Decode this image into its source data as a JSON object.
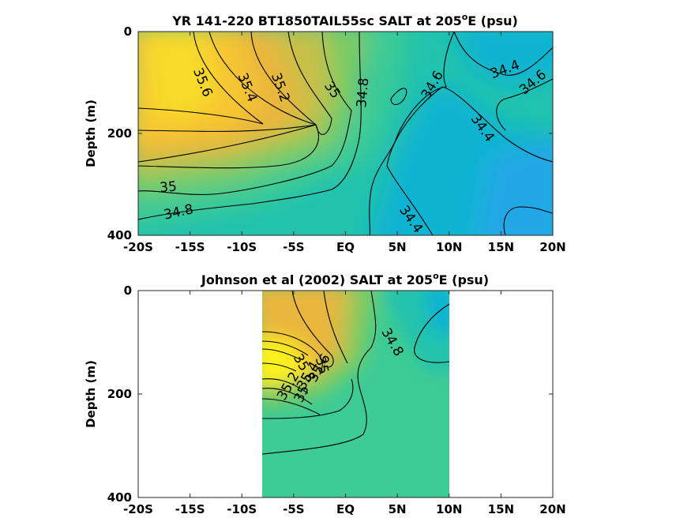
{
  "colors": {
    "s_low": "#22a7e6",
    "s_34_4": "#10b4d2",
    "s_34_6": "#22c2ae",
    "s_34_8": "#3ecb94",
    "s_35": "#7ecb62",
    "s_35_2": "#c6c04a",
    "s_35_4": "#e9b63e",
    "s_35_6": "#f6c532",
    "s_high": "#f8da2a",
    "s_max": "#f9f21c",
    "contour": "#000000"
  },
  "chart_data": [
    {
      "type": "heatmap",
      "title_main": "YR 141-220 BT1850TAIL55sc SALT at 205",
      "title_sup": "o",
      "title_tail": "E (psu)",
      "ylabel": "Depth (m)",
      "xlim": [
        -20,
        20
      ],
      "ylim": [
        400,
        0
      ],
      "x_ticks": [
        -20,
        -15,
        -10,
        -5,
        0,
        5,
        10,
        15,
        20
      ],
      "x_tick_labels": [
        "-20S",
        "-15S",
        "-10S",
        "-5S",
        "EQ",
        "5N",
        "10N",
        "15N",
        "20N"
      ],
      "y_ticks": [
        0,
        200,
        400
      ],
      "y_tick_labels": [
        "0",
        "200",
        "400"
      ],
      "data_extent_x": [
        -20,
        20
      ],
      "contour_levels": [
        34.4,
        34.6,
        34.8,
        35,
        35.2,
        35.4,
        35.6
      ],
      "contour_labels": [
        {
          "text": "35.6",
          "x": -13.8,
          "y": 100,
          "rot": 68
        },
        {
          "text": "35.4",
          "x": -9.5,
          "y": 110,
          "rot": 68
        },
        {
          "text": "35.2",
          "x": -6.3,
          "y": 110,
          "rot": 70
        },
        {
          "text": "35",
          "x": -1.3,
          "y": 115,
          "rot": 55
        },
        {
          "text": "34.8",
          "x": 1.7,
          "y": 120,
          "rot": -85
        },
        {
          "text": "34.6",
          "x": 8.4,
          "y": 105,
          "rot": -60
        },
        {
          "text": "34.4",
          "x": 13.2,
          "y": 190,
          "rot": 55
        },
        {
          "text": "34.4",
          "x": 15.4,
          "y": 75,
          "rot": -20
        },
        {
          "text": "34.6",
          "x": 18.1,
          "y": 100,
          "rot": -40
        },
        {
          "text": "35",
          "x": -17.1,
          "y": 306,
          "rot": -5
        },
        {
          "text": "34.8",
          "x": -16.1,
          "y": 355,
          "rot": -12
        },
        {
          "text": "34.4",
          "x": 6.3,
          "y": 369,
          "rot": 55
        }
      ]
    },
    {
      "type": "heatmap",
      "title_main": "Johnson et al (2002) SALT at 205",
      "title_sup": "o",
      "title_tail": "E (psu)",
      "ylabel": "Depth (m)",
      "xlim": [
        -20,
        20
      ],
      "ylim": [
        400,
        0
      ],
      "x_ticks": [
        -20,
        -15,
        -10,
        -5,
        0,
        5,
        10,
        15,
        20
      ],
      "x_tick_labels": [
        "-20S",
        "-15S",
        "-10S",
        "-5S",
        "EQ",
        "5N",
        "10N",
        "15N",
        "20N"
      ],
      "y_ticks": [
        0,
        200,
        400
      ],
      "y_tick_labels": [
        "0",
        "200",
        "400"
      ],
      "data_extent_x": [
        -8,
        10
      ],
      "contour_labels": [
        {
          "text": "34.8",
          "x": 4.5,
          "y": 100,
          "rot": 60
        },
        {
          "text": "35",
          "x": -4.2,
          "y": 200,
          "rot": -65
        },
        {
          "text": "35.2",
          "x": -5.5,
          "y": 185,
          "rot": -60
        },
        {
          "text": "35.4",
          "x": -3.6,
          "y": 165,
          "rot": -60
        },
        {
          "text": "35.6",
          "x": -2.5,
          "y": 150,
          "rot": -60
        },
        {
          "text": "35.8",
          "x": -4.0,
          "y": 150,
          "rot": 60
        },
        {
          "text": "35",
          "x": -2.3,
          "y": 145,
          "rot": 75
        }
      ]
    }
  ]
}
